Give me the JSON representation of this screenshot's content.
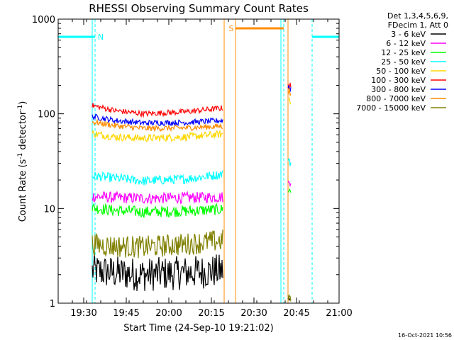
{
  "chart_data": {
    "type": "line",
    "title": "RHESSI Observing Summary Count Rates",
    "xlabel": "Start Time (24-Sep-10 19:21:02)",
    "ylabel_main": "Count Rate (s",
    "ylabel_sup1": "-1",
    "ylabel_mid": " detector",
    "ylabel_sup2": "-1",
    "ylabel_end": ")",
    "y_scale": "log",
    "ylim": [
      1,
      1000
    ],
    "y_ticks": [
      {
        "value": 1,
        "label": "1"
      },
      {
        "value": 10,
        "label": "10"
      },
      {
        "value": 100,
        "label": "100"
      },
      {
        "value": 1000,
        "label": "1000"
      }
    ],
    "x_unit": "minutes after 19:21:02",
    "xlim": [
      0,
      99
    ],
    "x_ticks": [
      {
        "minute": 9,
        "label": "19:30"
      },
      {
        "minute": 24,
        "label": "19:45"
      },
      {
        "minute": 39,
        "label": "20:00"
      },
      {
        "minute": 54,
        "label": "20:15"
      },
      {
        "minute": 69,
        "label": "20:30"
      },
      {
        "minute": 84,
        "label": "20:45"
      },
      {
        "minute": 99,
        "label": "21:00"
      }
    ],
    "legend_header": [
      "Det 1,3,4,5,6,9,",
      "FDecim 1, Att 0"
    ],
    "legend_position": "right",
    "series": [
      {
        "name": "3 - 6 keV",
        "color": "#000000",
        "segments": [
          {
            "x": [
              12,
              20,
              30,
              45,
              58
            ],
            "y": [
              2.2,
              2.1,
              2.0,
              2.1,
              2.2
            ],
            "noise": 0.18
          },
          {
            "x": [
              81,
              82
            ],
            "y": [
              1.1,
              1.05
            ],
            "noise": 0.05
          }
        ]
      },
      {
        "name": "6 - 12 keV",
        "color": "#ff00ff",
        "segments": [
          {
            "x": [
              12,
              20,
              30,
              45,
              58
            ],
            "y": [
              13.5,
              13,
              12.8,
              13,
              13.2
            ],
            "noise": 0.06
          },
          {
            "x": [
              81,
              82
            ],
            "y": [
              18,
              20
            ],
            "noise": 0.05
          }
        ]
      },
      {
        "name": "12 - 25 keV",
        "color": "#00ff00",
        "segments": [
          {
            "x": [
              12,
              20,
              30,
              45,
              58
            ],
            "y": [
              10.2,
              9.5,
              9.2,
              9.4,
              9.8
            ],
            "noise": 0.06
          },
          {
            "x": [
              81,
              82
            ],
            "y": [
              16,
              15
            ],
            "noise": 0.05
          }
        ]
      },
      {
        "name": "25 - 50 keV",
        "color": "#00ffff",
        "segments": [
          {
            "x": [
              12,
              20,
              30,
              45,
              58
            ],
            "y": [
              22,
              21,
              19.5,
              20.5,
              23
            ],
            "noise": 0.05
          },
          {
            "x": [
              81,
              82
            ],
            "y": [
              35,
              30
            ],
            "noise": 0.05
          }
        ]
      },
      {
        "name": "50 - 100 keV",
        "color": "#ffd700",
        "segments": [
          {
            "x": [
              12,
              20,
              30,
              45,
              58
            ],
            "y": [
              62,
              57,
              55,
              57,
              61
            ],
            "noise": 0.04
          },
          {
            "x": [
              81,
              82
            ],
            "y": [
              150,
              140
            ],
            "noise": 0.05
          }
        ]
      },
      {
        "name": "100 - 300 keV",
        "color": "#ff0000",
        "segments": [
          {
            "x": [
              12,
              20,
              30,
              45,
              58
            ],
            "y": [
              122,
              108,
              100,
              105,
              115
            ],
            "noise": 0.03
          },
          {
            "x": [
              81,
              82
            ],
            "y": [
              205,
              190
            ],
            "noise": 0.05
          }
        ]
      },
      {
        "name": "300 - 800 keV",
        "color": "#0000ff",
        "segments": [
          {
            "x": [
              12,
              20,
              30,
              45,
              58
            ],
            "y": [
              94,
              85,
              80,
              81,
              85
            ],
            "noise": 0.03
          },
          {
            "x": [
              81,
              82
            ],
            "y": [
              195,
              185
            ],
            "noise": 0.05
          }
        ]
      },
      {
        "name": "800 - 7000 keV",
        "color": "#ff8c00",
        "segments": [
          {
            "x": [
              12,
              20,
              30,
              45,
              58
            ],
            "y": [
              82,
              75,
              70,
              71,
              74
            ],
            "noise": 0.03
          },
          {
            "x": [
              81,
              82
            ],
            "y": [
              175,
              165
            ],
            "noise": 0.05
          }
        ]
      },
      {
        "name": "7000 - 15000 keV",
        "color": "#808000",
        "segments": [
          {
            "x": [
              12,
              20,
              30,
              45,
              58
            ],
            "y": [
              4.2,
              4.0,
              3.9,
              4.2,
              4.6
            ],
            "noise": 0.12
          },
          {
            "x": [
              81,
              82
            ],
            "y": [
              1.2,
              1.1
            ],
            "noise": 0.05
          }
        ]
      }
    ],
    "flags": [
      {
        "label": "N",
        "color": "#00ffff",
        "x_start": 0,
        "x_end": 13,
        "y": 650,
        "show_label": true
      },
      {
        "label": "N",
        "color": "#00ffff",
        "x_start": 89.5,
        "x_end": 99,
        "y": 650,
        "show_label": false
      },
      {
        "label": "S",
        "color": "#ff8c00",
        "x_start": 62.5,
        "x_end": 79.5,
        "y": 800,
        "show_label": true
      }
    ],
    "boundaries": [
      {
        "x": 0,
        "color": "#00ffff",
        "style": "solid"
      },
      {
        "x": 12,
        "color": "#00ffff",
        "style": "solid"
      },
      {
        "x": 13,
        "color": "#00ffff",
        "style": "dashed"
      },
      {
        "x": 58.5,
        "color": "#ff8c00",
        "style": "solid"
      },
      {
        "x": 62.5,
        "color": "#ff8c00",
        "style": "solid"
      },
      {
        "x": 78.5,
        "color": "#00ffff",
        "style": "solid"
      },
      {
        "x": 79.5,
        "color": "#00ffff",
        "style": "dashed"
      },
      {
        "x": 81,
        "color": "#ff8c00",
        "style": "solid"
      },
      {
        "x": 89.5,
        "color": "#00ffff",
        "style": "dashed"
      }
    ]
  },
  "footer_timestamp": "16-Oct-2021 10:56"
}
